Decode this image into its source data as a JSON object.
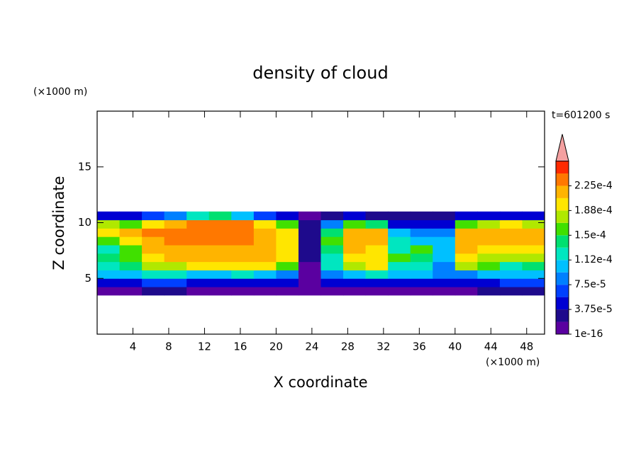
{
  "chart_data": {
    "type": "contour",
    "title": "density of cloud",
    "x_label": "X coordinate",
    "y_label": "Z coordinate",
    "x_unit": "(×1000 m)",
    "y_unit": "(×1000 m)",
    "time_label": "t=601200 s",
    "xlim": [
      0,
      50
    ],
    "ylim": [
      0,
      20
    ],
    "xticks": [
      4,
      8,
      12,
      16,
      20,
      24,
      28,
      32,
      36,
      40,
      44,
      48
    ],
    "yticks": [
      5,
      10,
      15
    ],
    "x": [
      1.25,
      3.75,
      6.25,
      8.75,
      11.25,
      13.75,
      16.25,
      18.75,
      21.25,
      23.75,
      26.25,
      28.75,
      31.25,
      33.75,
      36.25,
      38.75,
      41.25,
      43.75,
      46.25,
      48.75
    ],
    "z": [
      3.875,
      4.625,
      5.375,
      6.125,
      6.875,
      7.625,
      8.375,
      9.125,
      9.875,
      10.625
    ],
    "values": [
      [
        1e-05,
        1e-05,
        2e-05,
        2e-05,
        1e-05,
        1e-05,
        1e-05,
        1e-05,
        1e-05,
        5e-06,
        1e-05,
        1e-05,
        1e-05,
        1e-05,
        1e-05,
        1e-05,
        1e-05,
        2e-05,
        2e-05,
        2e-05
      ],
      [
        5e-05,
        5e-05,
        6e-05,
        6e-05,
        5e-05,
        5e-05,
        5e-05,
        5e-05,
        4e-05,
        1e-05,
        4e-05,
        5e-05,
        5e-05,
        5e-05,
        5e-05,
        4e-05,
        5e-05,
        5e-05,
        6e-05,
        6e-05
      ],
      [
        0.0001,
        0.00011,
        0.00012,
        0.00013,
        0.00011,
        0.00011,
        0.00012,
        0.00011,
        9e-05,
        1e-05,
        8e-05,
        0.0001,
        0.00012,
        0.0001,
        0.0001,
        8e-05,
        9e-05,
        0.0001,
        0.0001,
        0.0001
      ],
      [
        0.00013,
        0.00014,
        0.00017,
        0.00018,
        0.00019,
        0.00019,
        0.00019,
        0.00019,
        0.00016,
        1e-05,
        0.00012,
        0.00018,
        0.00019,
        0.00013,
        0.00012,
        9e-05,
        0.00018,
        0.00015,
        0.00013,
        0.00014
      ],
      [
        0.00014,
        0.00015,
        0.0002,
        0.00021,
        0.00021,
        0.00021,
        0.00021,
        0.00021,
        0.00019,
        2e-05,
        0.00013,
        0.0002,
        0.0002,
        0.00015,
        0.00014,
        0.0001,
        0.0002,
        0.00018,
        0.00017,
        0.00017
      ],
      [
        0.00012,
        0.00016,
        0.00021,
        0.00022,
        0.00022,
        0.00022,
        0.00022,
        0.00022,
        0.0002,
        2e-05,
        0.00014,
        0.00021,
        0.0002,
        0.00012,
        0.00016,
        0.0001,
        0.00021,
        0.0002,
        0.00019,
        0.0002
      ],
      [
        0.00015,
        0.00019,
        0.00022,
        0.00023,
        0.00023,
        0.00023,
        0.00023,
        0.00022,
        0.0002,
        3e-05,
        0.00015,
        0.00022,
        0.00021,
        0.00013,
        0.00011,
        0.0001,
        0.00022,
        0.00021,
        0.00021,
        0.00021
      ],
      [
        0.0002,
        0.00021,
        0.00023,
        0.00023,
        0.00024,
        0.00024,
        0.00023,
        0.00022,
        0.00019,
        3e-05,
        0.00014,
        0.00022,
        0.00021,
        0.0001,
        8e-05,
        9e-05,
        0.00022,
        0.00022,
        0.00022,
        0.00021
      ],
      [
        0.00018,
        0.00015,
        0.0002,
        0.00022,
        0.00024,
        0.00024,
        0.00023,
        0.0002,
        0.00015,
        2e-05,
        8e-05,
        0.00016,
        0.00014,
        5e-05,
        5e-05,
        5e-05,
        0.00015,
        0.00018,
        0.00019,
        0.00017
      ],
      [
        4e-05,
        5e-05,
        6e-05,
        8e-05,
        0.00012,
        0.00014,
        0.00011,
        7e-05,
        4e-05,
        1e-05,
        2e-05,
        4e-05,
        3e-05,
        2e-05,
        2e-05,
        2e-05,
        4e-05,
        5e-05,
        5e-05,
        4e-05
      ]
    ],
    "levels": [
      1e-16,
      1.875e-05,
      3.75e-05,
      5.625e-05,
      7.5e-05,
      9.375e-05,
      0.0001125,
      0.00013125,
      0.00015,
      0.00016875,
      0.0001875,
      0.00020625,
      0.000225,
      0.00024375
    ],
    "colors": [
      "#5a00a0",
      "#1e0a8c",
      "#0000d2",
      "#0040ff",
      "#0080ff",
      "#00c0ff",
      "#00e6c0",
      "#00e070",
      "#40e000",
      "#b0e800",
      "#ffe600",
      "#ffb400",
      "#ff7800",
      "#ff2a00"
    ],
    "over_color": "#f4a0a0",
    "colorbar_ticks": [
      {
        "value": 1e-16,
        "label": "1e-16"
      },
      {
        "value": 3.75e-05,
        "label": "3.75e-5"
      },
      {
        "value": 7.5e-05,
        "label": "7.5e-5"
      },
      {
        "value": 0.0001125,
        "label": "1.12e-4"
      },
      {
        "value": 0.00015,
        "label": "1.5e-4"
      },
      {
        "value": 0.0001875,
        "label": "1.88e-4"
      },
      {
        "value": 0.000225,
        "label": "2.25e-4"
      }
    ]
  }
}
